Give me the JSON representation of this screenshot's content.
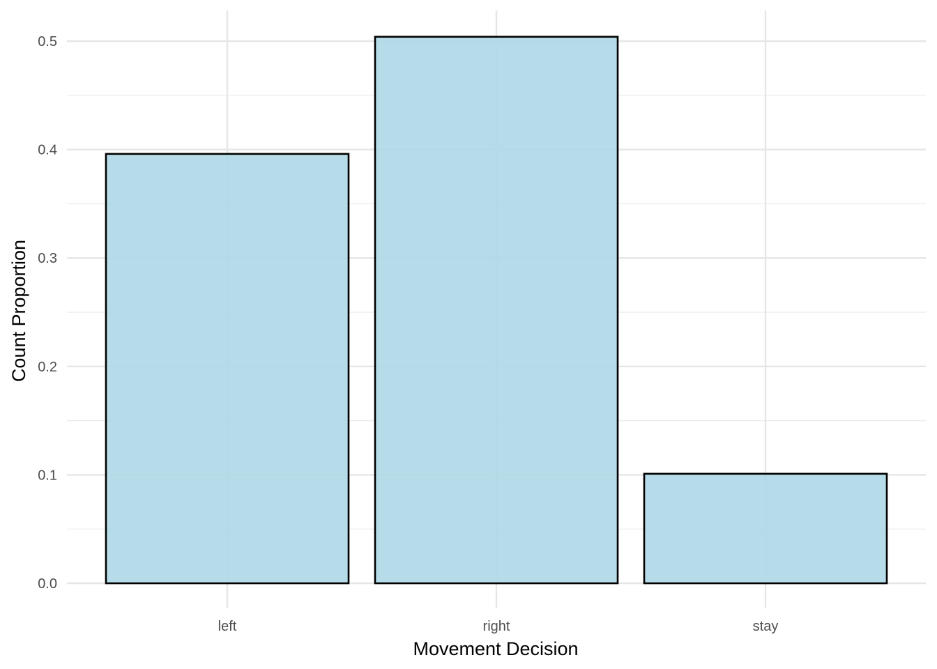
{
  "chart_data": {
    "type": "bar",
    "title": "",
    "xlabel": "Movement Decision",
    "ylabel": "Count Proportion",
    "categories": [
      "left",
      "right",
      "stay"
    ],
    "values": [
      0.396,
      0.504,
      0.101
    ],
    "ylim": [
      0,
      0.5
    ],
    "yticks": [
      "0.0",
      "0.1",
      "0.2",
      "0.3",
      "0.4",
      "0.5"
    ],
    "grid": true,
    "legend": "none",
    "bar_fill": "#add8e6",
    "bar_outline": "#000000"
  }
}
